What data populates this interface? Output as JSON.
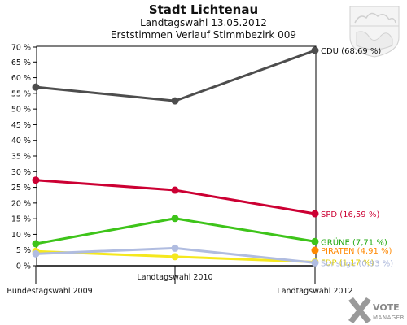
{
  "header": {
    "title": "Stadt Lichtenau",
    "subtitle": "Landtagswahl 13.05.2012",
    "subtitle2": "Erststimmen Verlauf Stimmbezirk 009"
  },
  "branding": {
    "logo_line1": "VOTE",
    "logo_line2": "MANAGER",
    "crest_icon": "coat-of-arms-icon"
  },
  "chart_data": {
    "type": "line",
    "title": "Stadt Lichtenau",
    "subtitle": "Landtagswahl 13.05.2012 — Erststimmen Verlauf Stimmbezirk 009",
    "categories": [
      "Bundestagswahl 2009",
      "Landtagswahl 2010",
      "Landtagswahl 2012"
    ],
    "ylim": [
      0,
      70
    ],
    "yticks": [
      {
        "value": 0,
        "label": "0 %"
      },
      {
        "value": 5,
        "label": "5 %"
      },
      {
        "value": 10,
        "label": "10 %"
      },
      {
        "value": 15,
        "label": "15 %"
      },
      {
        "value": 20,
        "label": "20 %"
      },
      {
        "value": 25,
        "label": "25 %"
      },
      {
        "value": 30,
        "label": "30 %"
      },
      {
        "value": 35,
        "label": "35 %"
      },
      {
        "value": 40,
        "label": "40 %"
      },
      {
        "value": 45,
        "label": "45 %"
      },
      {
        "value": 50,
        "label": "50 %"
      },
      {
        "value": 55,
        "label": "55 %"
      },
      {
        "value": 60,
        "label": "60 %"
      },
      {
        "value": 65,
        "label": "65 %"
      },
      {
        "value": 70,
        "label": "70 %"
      }
    ],
    "grid": false,
    "series": [
      {
        "name": "CDU",
        "end_label": "CDU (68,69 %)",
        "color": "#4d4d4d",
        "label_color": "#111111",
        "values": [
          57.0,
          52.6,
          68.69
        ]
      },
      {
        "name": "SPD",
        "end_label": "SPD (16,59 %)",
        "color": "#cc0033",
        "label_color": "#cc0033",
        "values": [
          27.3,
          24.1,
          16.59
        ]
      },
      {
        "name": "GRÜNE",
        "end_label": "GRÜNE (7,71 %)",
        "color": "#3ec41a",
        "label_color": "#22aa11",
        "values": [
          7.0,
          15.1,
          7.71
        ]
      },
      {
        "name": "PIRATEN",
        "end_label": "PIRATEN (4,91 %)",
        "color": "#ff8800",
        "label_color": "#ff8800",
        "values": [
          null,
          null,
          4.91
        ]
      },
      {
        "name": "FDP",
        "end_label": "FDP (1,17 %)",
        "color": "#f5e81e",
        "label_color": "#e0d000",
        "values": [
          4.6,
          2.9,
          1.17
        ]
      },
      {
        "name": "Sonstige",
        "end_label": "Sonstige (0,93 %)",
        "color": "#b0bce0",
        "label_color": "#aab6da",
        "values": [
          3.8,
          5.6,
          0.93
        ]
      }
    ]
  }
}
